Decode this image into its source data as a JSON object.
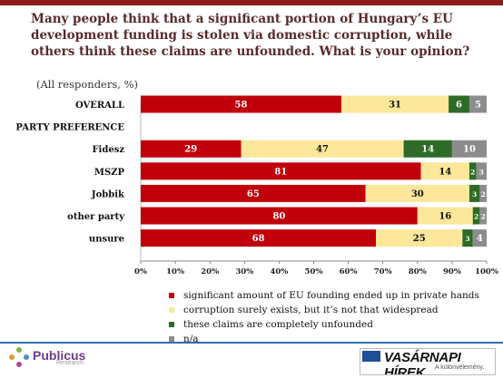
{
  "header": {
    "title": "Many people think that a significant portion of  Hungary’s EU development funding is stolen via domestic corruption, while others think these claims are unfounded. What is your opinion?",
    "subtitle": "(All responders, %)"
  },
  "colors": {
    "top_rule": "#8a1c1c",
    "footer_rule": "#2e6fae",
    "series": [
      "#c0000a",
      "#fce79a",
      "#2e6b27",
      "#8c8c8c"
    ]
  },
  "chart_data": {
    "type": "bar",
    "orientation": "horizontal",
    "stacked": true,
    "categories": [
      "OVERALL",
      "PARTY PREFERENCE",
      "Fidesz",
      "MSZP",
      "Jobbik",
      "other party",
      "unsure"
    ],
    "group_header": "PARTY PREFERENCE",
    "series": [
      {
        "name": "significant amount of EU founding ended up in private hands",
        "values": [
          58,
          null,
          29,
          81,
          65,
          80,
          68
        ]
      },
      {
        "name": "corruption surely exists, but it’s not that widespread",
        "values": [
          31,
          null,
          47,
          14,
          30,
          16,
          25
        ]
      },
      {
        "name": "these claims are completely unfounded",
        "values": [
          6,
          null,
          14,
          2,
          3,
          2,
          3
        ]
      },
      {
        "name": "n/a",
        "values": [
          5,
          null,
          10,
          3,
          2,
          2,
          4
        ]
      }
    ],
    "x_ticks": [
      "0%",
      "10%",
      "20%",
      "30%",
      "40%",
      "50%",
      "60%",
      "70%",
      "80%",
      "90%",
      "100%"
    ],
    "xlim": [
      0,
      100
    ],
    "grid": false,
    "legend_position": "bottom"
  },
  "footer": {
    "left_logo": {
      "name": "Publicus",
      "sub": "Research"
    },
    "right_logo": {
      "name": "VASÁRNAPI HÍREK",
      "sub": "A különvélemény."
    }
  }
}
